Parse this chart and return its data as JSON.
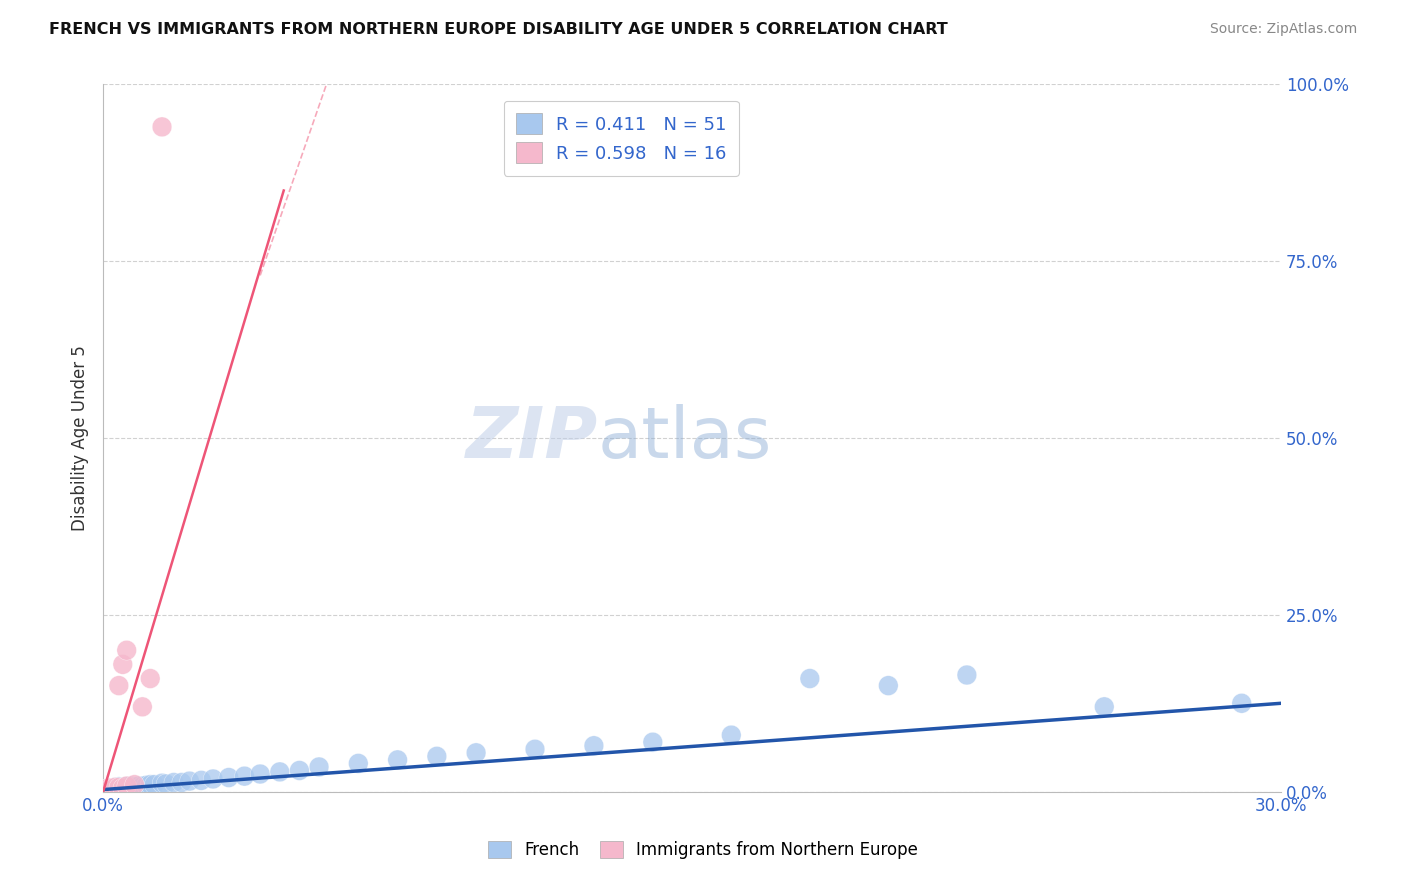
{
  "title": "FRENCH VS IMMIGRANTS FROM NORTHERN EUROPE DISABILITY AGE UNDER 5 CORRELATION CHART",
  "source": "Source: ZipAtlas.com",
  "ylabel": "Disability Age Under 5",
  "xlim": [
    0.0,
    0.3
  ],
  "ylim": [
    0.0,
    1.0
  ],
  "xtick_labels": [
    "0.0%",
    "30.0%"
  ],
  "ytick_labels": [
    "0.0%",
    "25.0%",
    "50.0%",
    "75.0%",
    "100.0%"
  ],
  "ytick_values": [
    0.0,
    0.25,
    0.5,
    0.75,
    1.0
  ],
  "french_color": "#a8c8ee",
  "immigrant_color": "#f5b8cc",
  "french_line_color": "#2255aa",
  "immigrant_line_color": "#ee5577",
  "R_french": 0.411,
  "N_french": 51,
  "R_immigrant": 0.598,
  "N_immigrant": 16,
  "legend_label_french": "French",
  "legend_label_immigrant": "Immigrants from Northern Europe",
  "watermark_zip": "ZIP",
  "watermark_atlas": "atlas",
  "background_color": "#ffffff",
  "grid_color": "#cccccc",
  "french_x": [
    0.001,
    0.001,
    0.001,
    0.002,
    0.002,
    0.002,
    0.003,
    0.003,
    0.003,
    0.004,
    0.004,
    0.004,
    0.005,
    0.005,
    0.006,
    0.006,
    0.007,
    0.007,
    0.008,
    0.009,
    0.009,
    0.01,
    0.011,
    0.012,
    0.013,
    0.015,
    0.016,
    0.018,
    0.02,
    0.022,
    0.025,
    0.028,
    0.032,
    0.036,
    0.04,
    0.045,
    0.05,
    0.055,
    0.065,
    0.075,
    0.085,
    0.095,
    0.11,
    0.125,
    0.14,
    0.16,
    0.18,
    0.2,
    0.22,
    0.255,
    0.29
  ],
  "french_y": [
    0.002,
    0.003,
    0.004,
    0.003,
    0.004,
    0.005,
    0.003,
    0.005,
    0.006,
    0.004,
    0.005,
    0.007,
    0.004,
    0.006,
    0.005,
    0.007,
    0.006,
    0.008,
    0.006,
    0.007,
    0.008,
    0.008,
    0.009,
    0.01,
    0.01,
    0.012,
    0.011,
    0.013,
    0.013,
    0.015,
    0.016,
    0.018,
    0.02,
    0.022,
    0.025,
    0.028,
    0.03,
    0.035,
    0.04,
    0.045,
    0.05,
    0.055,
    0.06,
    0.065,
    0.07,
    0.08,
    0.16,
    0.15,
    0.165,
    0.12,
    0.125
  ],
  "immigrant_x": [
    0.001,
    0.001,
    0.002,
    0.002,
    0.003,
    0.003,
    0.004,
    0.004,
    0.005,
    0.005,
    0.006,
    0.006,
    0.008,
    0.01,
    0.012,
    0.015
  ],
  "immigrant_y": [
    0.003,
    0.004,
    0.004,
    0.005,
    0.005,
    0.006,
    0.006,
    0.15,
    0.005,
    0.18,
    0.2,
    0.008,
    0.01,
    0.12,
    0.16,
    0.94
  ],
  "french_line_x": [
    0.0,
    0.3
  ],
  "french_line_y": [
    0.003,
    0.125
  ],
  "immigrant_line_x": [
    0.0,
    0.046
  ],
  "immigrant_line_y": [
    0.0,
    0.85
  ]
}
